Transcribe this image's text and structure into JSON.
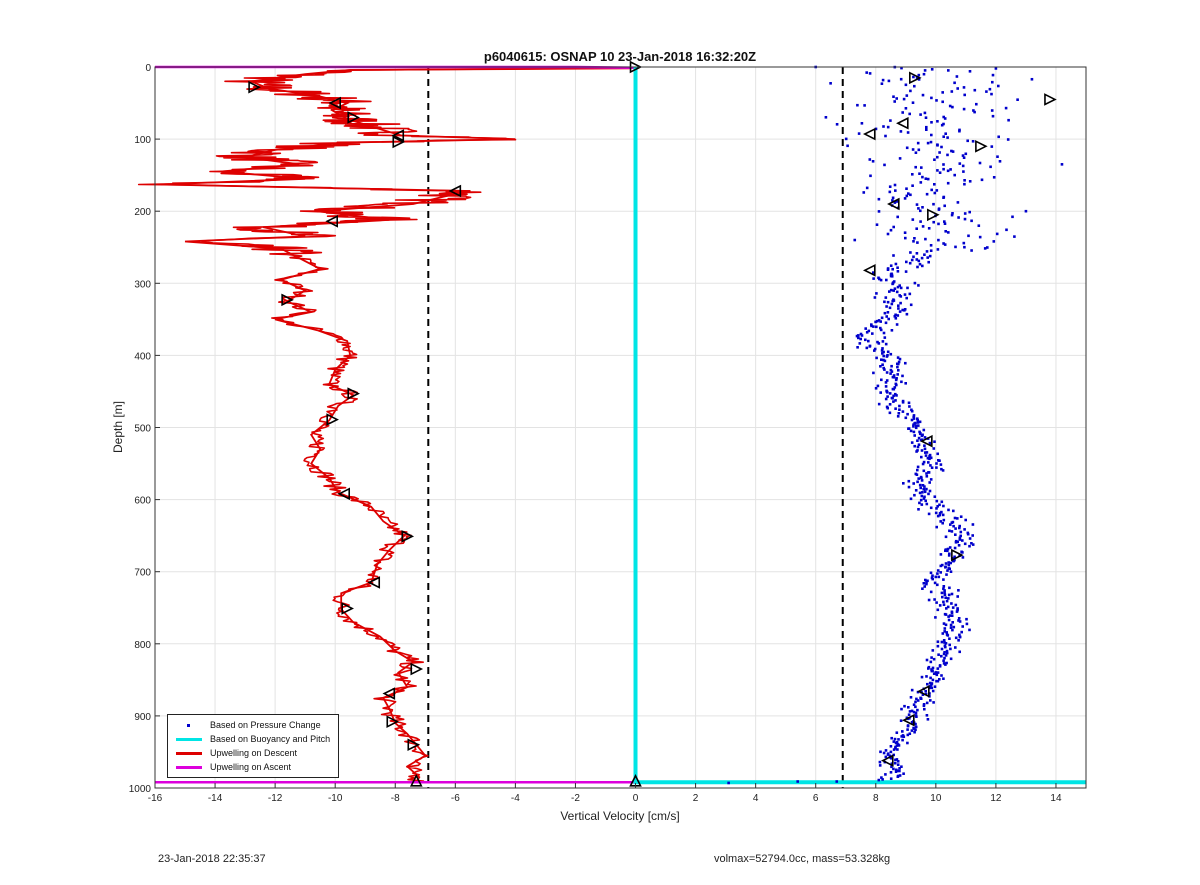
{
  "footer": {
    "timestamp": "23-Jan-2018 22:35:37",
    "glider_info": "volmax=52794.0cc, mass=53.328kg"
  },
  "chart_data": {
    "type": "scatter",
    "title": "p6040615: OSNAP 10 23-Jan-2018 16:32:20Z",
    "xlabel": "Vertical Velocity [cm/s]",
    "ylabel": "Depth [m]",
    "xlim": [
      -16,
      15
    ],
    "ylim": [
      0,
      1000
    ],
    "y_reversed": true,
    "grid": true,
    "xticks": [
      -16,
      -14,
      -12,
      -10,
      -8,
      -6,
      -4,
      -2,
      0,
      2,
      4,
      6,
      8,
      10,
      12,
      14
    ],
    "yticks": [
      0,
      100,
      200,
      300,
      400,
      500,
      600,
      700,
      800,
      900,
      1000
    ],
    "legend_position": "bottom-left",
    "reference_lines": [
      {
        "x": -6.9,
        "style": "dashed",
        "color": "#000000"
      },
      {
        "x": 6.9,
        "style": "dashed",
        "color": "#000000"
      }
    ],
    "series": [
      {
        "name": "Based on Pressure Change",
        "kind": "scatter",
        "color": "#0000cc",
        "profile": [
          [
            0,
            9.6
          ],
          [
            20,
            9.8
          ],
          [
            40,
            10.4
          ],
          [
            60,
            10.0
          ],
          [
            80,
            9.6
          ],
          [
            100,
            9.9
          ],
          [
            120,
            10.0
          ],
          [
            140,
            10.2
          ],
          [
            160,
            9.3
          ],
          [
            175,
            8.8
          ],
          [
            190,
            9.6
          ],
          [
            205,
            9.9
          ],
          [
            225,
            10.4
          ],
          [
            240,
            10.6
          ],
          [
            255,
            9.8
          ],
          [
            270,
            9.2
          ],
          [
            285,
            8.2
          ],
          [
            300,
            8.6
          ],
          [
            320,
            8.6
          ],
          [
            340,
            8.7
          ],
          [
            355,
            8.2
          ],
          [
            370,
            7.8
          ],
          [
            390,
            8.1
          ],
          [
            410,
            8.5
          ],
          [
            430,
            8.6
          ],
          [
            450,
            8.5
          ],
          [
            470,
            8.5
          ],
          [
            490,
            9.2
          ],
          [
            510,
            9.5
          ],
          [
            530,
            9.7
          ],
          [
            550,
            9.8
          ],
          [
            570,
            9.6
          ],
          [
            590,
            9.5
          ],
          [
            610,
            10.0
          ],
          [
            630,
            10.5
          ],
          [
            650,
            10.9
          ],
          [
            670,
            10.8
          ],
          [
            690,
            10.4
          ],
          [
            710,
            9.9
          ],
          [
            730,
            10.2
          ],
          [
            750,
            10.4
          ],
          [
            770,
            10.5
          ],
          [
            790,
            10.5
          ],
          [
            810,
            10.3
          ],
          [
            830,
            10.0
          ],
          [
            850,
            10.0
          ],
          [
            870,
            9.6
          ],
          [
            890,
            9.4
          ],
          [
            910,
            9.1
          ],
          [
            930,
            8.9
          ],
          [
            950,
            8.6
          ],
          [
            965,
            8.5
          ],
          [
            980,
            8.6
          ],
          [
            988,
            8.4
          ]
        ],
        "spread": [
          [
            0,
            2.0
          ],
          [
            100,
            2.1
          ],
          [
            160,
            1.9
          ],
          [
            200,
            1.8
          ],
          [
            240,
            1.6
          ],
          [
            270,
            0.6
          ],
          [
            300,
            0.5
          ],
          [
            400,
            0.4
          ],
          [
            500,
            0.35
          ],
          [
            600,
            0.4
          ],
          [
            800,
            0.35
          ],
          [
            900,
            0.35
          ],
          [
            990,
            0.3
          ]
        ],
        "outliers": [
          [
            6.0,
            0
          ],
          [
            12.0,
            2
          ],
          [
            13.2,
            17
          ],
          [
            14.2,
            135
          ],
          [
            13.0,
            200
          ],
          [
            7.6,
            174
          ],
          [
            7.3,
            240
          ],
          [
            3.1,
            993
          ],
          [
            5.4,
            991
          ],
          [
            6.7,
            991
          ],
          [
            8.1,
            989
          ]
        ]
      },
      {
        "name": "Based on Buoyancy and Pitch",
        "kind": "line",
        "color": "#00e5e5",
        "points": [
          [
            0,
            0
          ],
          [
            0,
            992
          ],
          [
            15,
            992
          ]
        ]
      },
      {
        "name": "Upwelling on Descent",
        "kind": "line",
        "color": "#dd0000",
        "profile": [
          [
            0,
            -7.0
          ],
          [
            2,
            -0.2
          ],
          [
            4,
            -9.5
          ],
          [
            10,
            -11.0
          ],
          [
            20,
            -12.8
          ],
          [
            30,
            -12.2
          ],
          [
            40,
            -10.6
          ],
          [
            50,
            -9.6
          ],
          [
            60,
            -10.1
          ],
          [
            72,
            -9.6
          ],
          [
            85,
            -8.6
          ],
          [
            95,
            -7.8
          ],
          [
            100,
            -4.0
          ],
          [
            105,
            -9.7
          ],
          [
            115,
            -12.0
          ],
          [
            125,
            -13.0
          ],
          [
            135,
            -11.2
          ],
          [
            145,
            -13.8
          ],
          [
            155,
            -11.0
          ],
          [
            163,
            -15.8
          ],
          [
            172,
            -5.5
          ],
          [
            180,
            -6.4
          ],
          [
            190,
            -7.4
          ],
          [
            200,
            -10.6
          ],
          [
            212,
            -8.2
          ],
          [
            222,
            -12.4
          ],
          [
            235,
            -11.0
          ],
          [
            242,
            -15.0
          ],
          [
            252,
            -11.8
          ],
          [
            265,
            -11.2
          ],
          [
            280,
            -10.5
          ],
          [
            295,
            -11.8
          ],
          [
            310,
            -11.0
          ],
          [
            325,
            -11.6
          ],
          [
            340,
            -10.8
          ],
          [
            350,
            -12.0
          ],
          [
            365,
            -10.6
          ],
          [
            380,
            -9.6
          ],
          [
            400,
            -9.5
          ],
          [
            420,
            -10.0
          ],
          [
            440,
            -10.2
          ],
          [
            455,
            -9.4
          ],
          [
            470,
            -9.9
          ],
          [
            490,
            -10.2
          ],
          [
            510,
            -10.8
          ],
          [
            530,
            -10.5
          ],
          [
            550,
            -10.8
          ],
          [
            570,
            -10.2
          ],
          [
            590,
            -9.9
          ],
          [
            610,
            -8.8
          ],
          [
            630,
            -8.4
          ],
          [
            650,
            -7.7
          ],
          [
            670,
            -8.2
          ],
          [
            690,
            -8.6
          ],
          [
            715,
            -8.8
          ],
          [
            730,
            -9.8
          ],
          [
            752,
            -9.8
          ],
          [
            770,
            -9.4
          ],
          [
            790,
            -8.5
          ],
          [
            810,
            -8.0
          ],
          [
            825,
            -7.4
          ],
          [
            840,
            -7.9
          ],
          [
            860,
            -7.6
          ],
          [
            875,
            -8.4
          ],
          [
            890,
            -8.2
          ],
          [
            910,
            -8.0
          ],
          [
            925,
            -7.6
          ],
          [
            940,
            -7.3
          ],
          [
            955,
            -7.0
          ],
          [
            970,
            -7.6
          ],
          [
            985,
            -7.2
          ],
          [
            992,
            -7.3
          ]
        ]
      },
      {
        "name": "Upwelling on Ascent",
        "kind": "line",
        "color": "#dd00dd",
        "points": [
          [
            -16,
            0
          ],
          [
            -2,
            0
          ],
          [
            0,
            1
          ],
          [
            -16,
            992
          ],
          [
            0,
            992
          ]
        ]
      }
    ],
    "triangle_markers": [
      {
        "x": -12.7,
        "y": 28,
        "dir": "right"
      },
      {
        "x": -10.0,
        "y": 50,
        "dir": "left"
      },
      {
        "x": -9.4,
        "y": 70,
        "dir": "right"
      },
      {
        "x": -7.9,
        "y": 95,
        "dir": "left"
      },
      {
        "x": -7.9,
        "y": 104,
        "dir": "right"
      },
      {
        "x": -6.0,
        "y": 172,
        "dir": "left"
      },
      {
        "x": -10.1,
        "y": 214,
        "dir": "left"
      },
      {
        "x": -11.6,
        "y": 323,
        "dir": "right"
      },
      {
        "x": -9.4,
        "y": 453,
        "dir": "right"
      },
      {
        "x": -10.1,
        "y": 489,
        "dir": "right"
      },
      {
        "x": -9.7,
        "y": 592,
        "dir": "left"
      },
      {
        "x": -7.6,
        "y": 651,
        "dir": "right"
      },
      {
        "x": -8.7,
        "y": 715,
        "dir": "left"
      },
      {
        "x": -9.6,
        "y": 751,
        "dir": "right"
      },
      {
        "x": -7.3,
        "y": 835,
        "dir": "right"
      },
      {
        "x": -8.2,
        "y": 869,
        "dir": "left"
      },
      {
        "x": -8.1,
        "y": 908,
        "dir": "right"
      },
      {
        "x": -7.4,
        "y": 940,
        "dir": "right"
      },
      {
        "x": -7.3,
        "y": 990,
        "dir": "up"
      },
      {
        "x": 0,
        "y": 0,
        "dir": "right"
      },
      {
        "x": 0,
        "y": 990,
        "dir": "up"
      },
      {
        "x": 9.3,
        "y": 15,
        "dir": "right"
      },
      {
        "x": 13.8,
        "y": 45,
        "dir": "right"
      },
      {
        "x": 8.9,
        "y": 78,
        "dir": "left"
      },
      {
        "x": 7.8,
        "y": 93,
        "dir": "left"
      },
      {
        "x": 11.5,
        "y": 110,
        "dir": "right"
      },
      {
        "x": 8.6,
        "y": 190,
        "dir": "left"
      },
      {
        "x": 9.9,
        "y": 205,
        "dir": "right"
      },
      {
        "x": 7.8,
        "y": 282,
        "dir": "left"
      },
      {
        "x": 9.7,
        "y": 519,
        "dir": "left"
      },
      {
        "x": 10.7,
        "y": 677,
        "dir": "right"
      },
      {
        "x": 9.6,
        "y": 866,
        "dir": "left"
      },
      {
        "x": 9.1,
        "y": 906,
        "dir": "left"
      },
      {
        "x": 8.4,
        "y": 962,
        "dir": "left"
      }
    ]
  }
}
